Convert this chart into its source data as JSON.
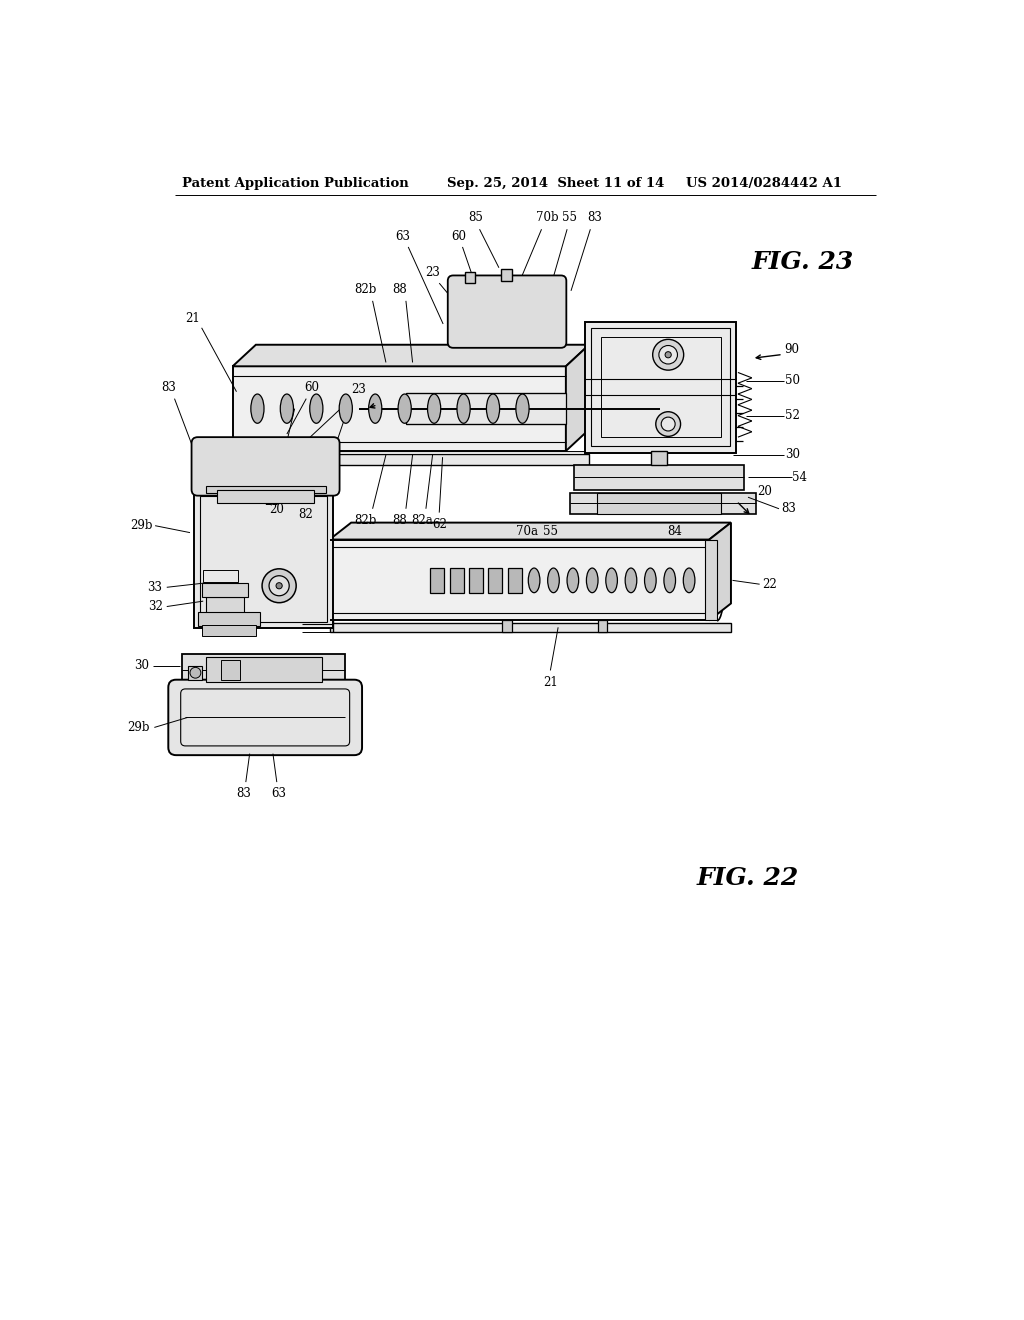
{
  "background_color": "#ffffff",
  "header_left": "Patent Application Publication",
  "header_center": "Sep. 25, 2014  Sheet 11 of 14",
  "header_right": "US 2014/0284442 A1",
  "fig23_label": "FIG. 23",
  "fig22_label": "FIG. 22",
  "line_color": "#000000",
  "lw": 1.0,
  "label_fontsize": 8.5,
  "header_fontsize": 9.5,
  "fig_label_fontsize": 18
}
